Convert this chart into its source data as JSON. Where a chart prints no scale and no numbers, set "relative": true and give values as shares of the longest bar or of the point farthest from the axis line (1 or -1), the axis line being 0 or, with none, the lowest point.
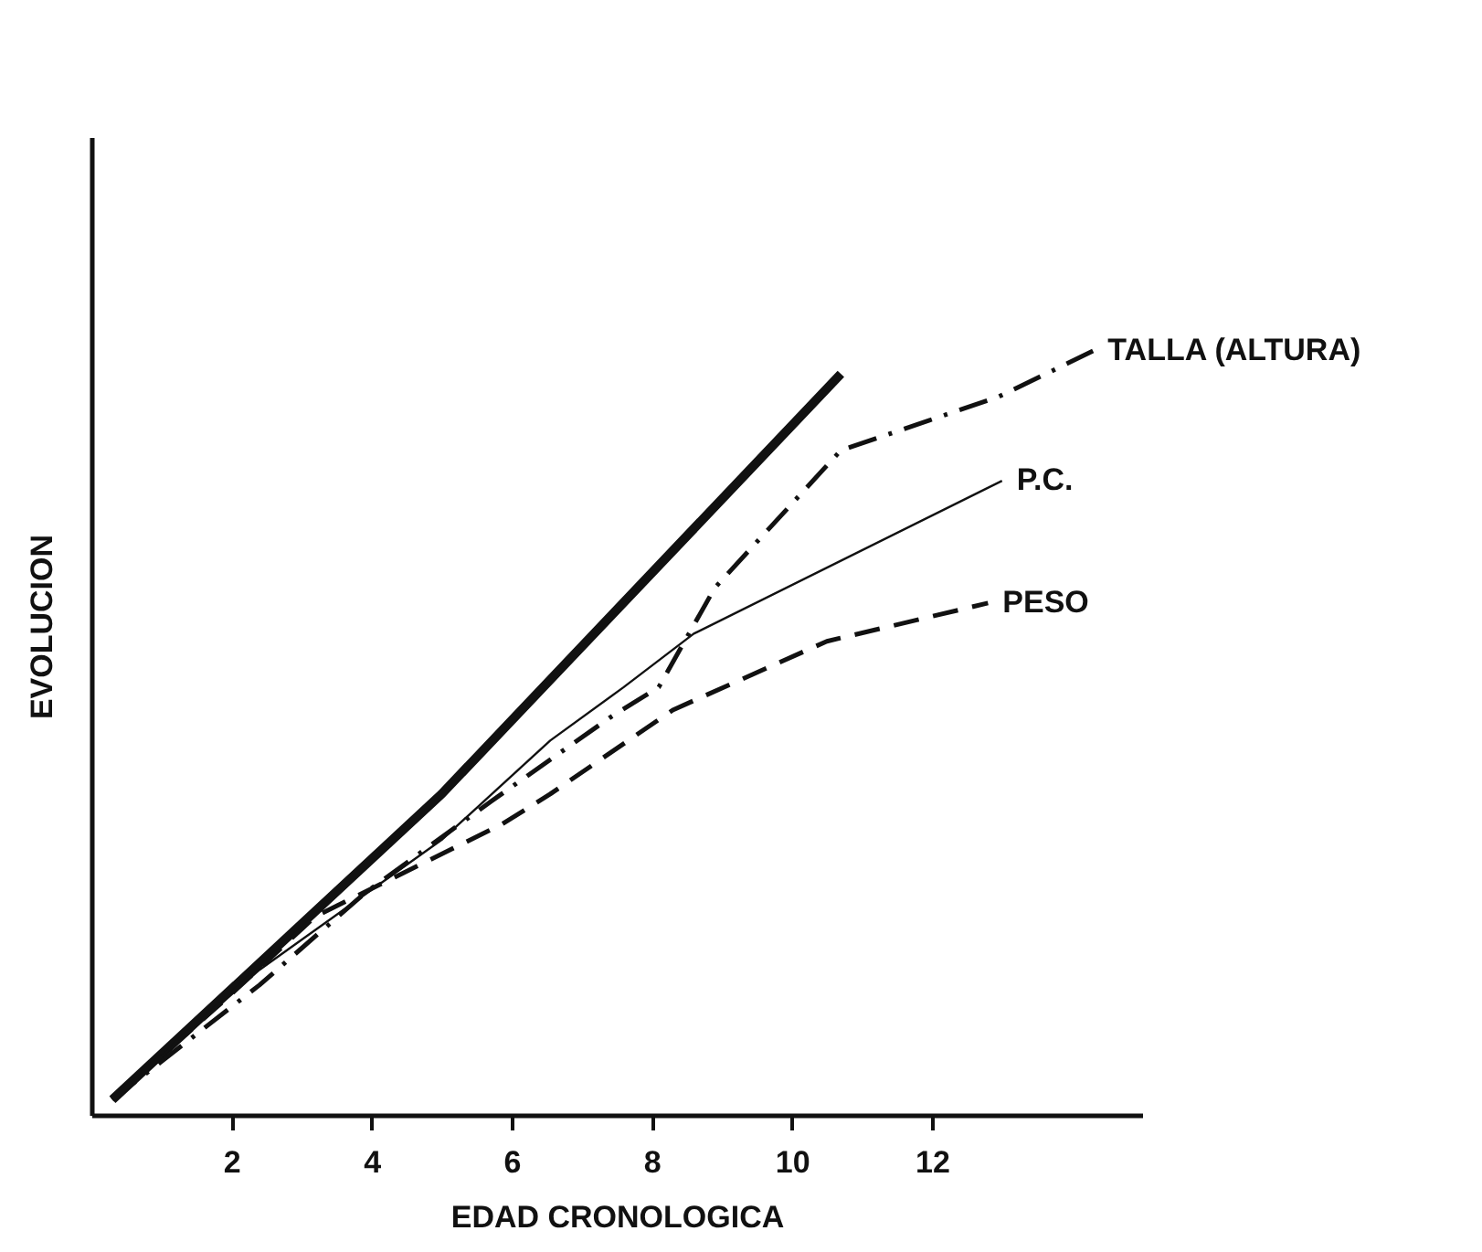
{
  "chart_data": {
    "type": "line",
    "relative": true,
    "xlabel": "EDAD CRONOLOGICA",
    "ylabel": "EVOLUCION",
    "xlim": [
      0,
      15
    ],
    "xticks": [
      2,
      4,
      6,
      8,
      10,
      12
    ],
    "series": [
      {
        "color": "#111111",
        "line_style": "solid",
        "x": [
          0.3,
          5.0,
          10.7
        ],
        "values": [
          0.02,
          0.42,
          0.97
        ]
      },
      {
        "name": "TALLA (ALTURA)",
        "color": "#111111",
        "line_style": "dashdot",
        "x": [
          0.3,
          2.4,
          3.9,
          5.7,
          7.4,
          8.1,
          8.9,
          10.7,
          12.95,
          14.3
        ],
        "values": [
          0.02,
          0.17,
          0.29,
          0.41,
          0.52,
          0.56,
          0.69,
          0.87,
          0.94,
          1.0
        ]
      },
      {
        "name": "P.C.",
        "color": "#111111",
        "line_style": "solid",
        "x": [
          0.3,
          2.4,
          5.0,
          6.55,
          7.6,
          8.6,
          13.0
        ],
        "values": [
          0.02,
          0.19,
          0.36,
          0.49,
          0.56,
          0.63,
          0.83
        ]
      },
      {
        "name": "PESO",
        "color": "#111111",
        "line_style": "dashed",
        "x": [
          0.3,
          1.9,
          3.2,
          5.85,
          6.55,
          8.3,
          10.5,
          12.8
        ],
        "values": [
          0.02,
          0.15,
          0.26,
          0.38,
          0.42,
          0.53,
          0.62,
          0.67
        ]
      }
    ]
  }
}
